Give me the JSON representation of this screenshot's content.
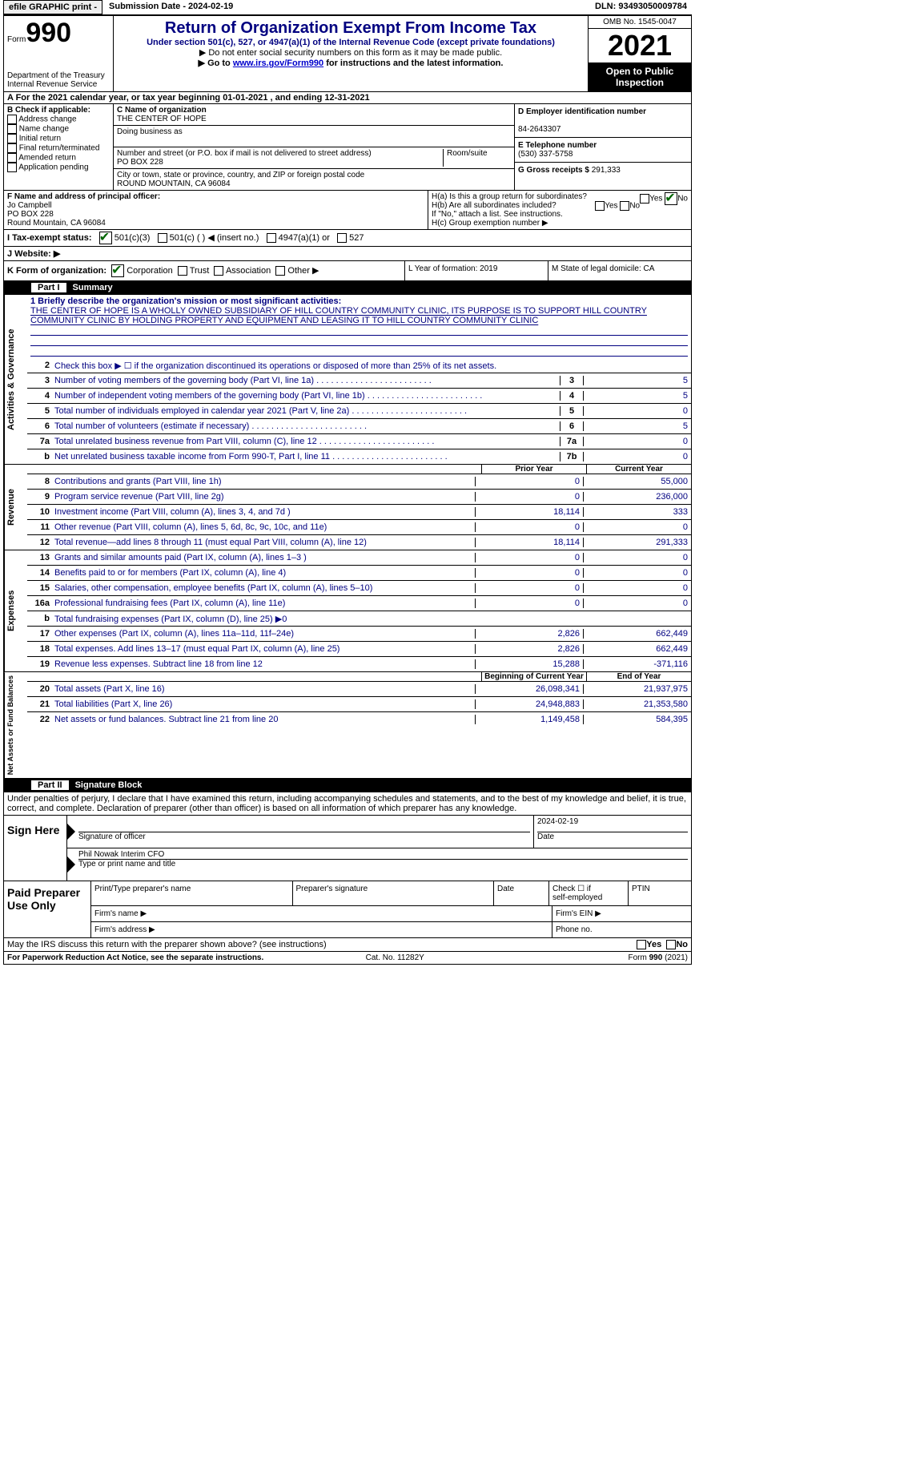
{
  "topbar": {
    "efile": "efile GRAPHIC print -",
    "submission": "Submission Date - 2024-02-19",
    "dln": "DLN: 93493050009784"
  },
  "header": {
    "form": "Form",
    "formno": "990",
    "dept": "Department of the Treasury\nInternal Revenue Service",
    "title": "Return of Organization Exempt From Income Tax",
    "sub1": "Under section 501(c), 527, or 4947(a)(1) of the Internal Revenue Code (except private foundations)",
    "sub2": "▶ Do not enter social security numbers on this form as it may be made public.",
    "sub3a": "▶ Go to ",
    "link": "www.irs.gov/Form990",
    "sub3b": " for instructions and the latest information.",
    "omb": "OMB No. 1545-0047",
    "year": "2021",
    "open": "Open to Public Inspection"
  },
  "rowA": "A For the 2021 calendar year, or tax year beginning 01-01-2021    , and ending 12-31-2021",
  "B": {
    "label": "B Check if applicable:",
    "opts": [
      "Address change",
      "Name change",
      "Initial return",
      "Final return/terminated",
      "Amended return",
      "Application pending"
    ]
  },
  "C": {
    "name_lbl": "C Name of organization",
    "name": "THE CENTER OF HOPE",
    "dba_lbl": "Doing business as",
    "dba": "",
    "addr_lbl": "Number and street (or P.O. box if mail is not delivered to street address)",
    "room_lbl": "Room/suite",
    "addr": "PO BOX 228",
    "city_lbl": "City or town, state or province, country, and ZIP or foreign postal code",
    "city": "ROUND MOUNTAIN, CA  96084"
  },
  "D": {
    "ein_lbl": "D Employer identification number",
    "ein": "84-2643307",
    "tel_lbl": "E Telephone number",
    "tel": "(530) 337-5758",
    "gross_lbl": "G Gross receipts $",
    "gross": "291,333"
  },
  "F": {
    "lbl": "F Name and address of principal officer:",
    "name": "Jo Campbell",
    "addr1": "PO BOX 228",
    "addr2": "Round Mountain, CA  96084"
  },
  "H": {
    "a": "H(a)  Is this a group return for subordinates?",
    "b": "H(b)  Are all subordinates included?",
    "note": "If \"No,\" attach a list. See instructions.",
    "c": "H(c)  Group exemption number ▶"
  },
  "I": {
    "lbl": "I  Tax-exempt status:",
    "o1": "501(c)(3)",
    "o2": "501(c) (  ) ◀ (insert no.)",
    "o3": "4947(a)(1) or",
    "o4": "527"
  },
  "J": "J  Website: ▶",
  "K": "K Form of organization:",
  "Kopts": [
    "Corporation",
    "Trust",
    "Association",
    "Other ▶"
  ],
  "L": "L Year of formation: 2019",
  "M": "M State of legal domicile: CA",
  "part1": {
    "num": "Part I",
    "title": "Summary"
  },
  "mission": {
    "lbl": "1  Briefly describe the organization's mission or most significant activities:",
    "text": "THE CENTER OF HOPE IS A WHOLLY OWNED SUBSIDIARY OF HILL COUNTRY COMMUNITY CLINIC, ITS PURPOSE IS TO SUPPORT HILL COUNTRY COMMUNITY CLINIC BY HOLDING PROPERTY AND EQUIPMENT AND LEASING IT TO HILL COUNTRY COMMUNITY CLINIC"
  },
  "line2": "Check this box ▶ ☐ if the organization discontinued its operations or disposed of more than 25% of its net assets.",
  "gov": [
    {
      "n": "3",
      "t": "Number of voting members of the governing body (Part VI, line 1a)",
      "b": "3",
      "v": "5"
    },
    {
      "n": "4",
      "t": "Number of independent voting members of the governing body (Part VI, line 1b)",
      "b": "4",
      "v": "5"
    },
    {
      "n": "5",
      "t": "Total number of individuals employed in calendar year 2021 (Part V, line 2a)",
      "b": "5",
      "v": "0"
    },
    {
      "n": "6",
      "t": "Total number of volunteers (estimate if necessary)",
      "b": "6",
      "v": "5"
    },
    {
      "n": "7a",
      "t": "Total unrelated business revenue from Part VIII, column (C), line 12",
      "b": "7a",
      "v": "0"
    },
    {
      "n": "b",
      "t": "Net unrelated business taxable income from Form 990-T, Part I, line 11",
      "b": "7b",
      "v": "0"
    }
  ],
  "hdr_prior": "Prior Year",
  "hdr_curr": "Current Year",
  "rev": [
    {
      "n": "8",
      "t": "Contributions and grants (Part VIII, line 1h)",
      "p": "0",
      "c": "55,000"
    },
    {
      "n": "9",
      "t": "Program service revenue (Part VIII, line 2g)",
      "p": "0",
      "c": "236,000"
    },
    {
      "n": "10",
      "t": "Investment income (Part VIII, column (A), lines 3, 4, and 7d )",
      "p": "18,114",
      "c": "333"
    },
    {
      "n": "11",
      "t": "Other revenue (Part VIII, column (A), lines 5, 6d, 8c, 9c, 10c, and 11e)",
      "p": "0",
      "c": "0"
    },
    {
      "n": "12",
      "t": "Total revenue—add lines 8 through 11 (must equal Part VIII, column (A), line 12)",
      "p": "18,114",
      "c": "291,333"
    }
  ],
  "exp": [
    {
      "n": "13",
      "t": "Grants and similar amounts paid (Part IX, column (A), lines 1–3 )",
      "p": "0",
      "c": "0"
    },
    {
      "n": "14",
      "t": "Benefits paid to or for members (Part IX, column (A), line 4)",
      "p": "0",
      "c": "0"
    },
    {
      "n": "15",
      "t": "Salaries, other compensation, employee benefits (Part IX, column (A), lines 5–10)",
      "p": "0",
      "c": "0"
    },
    {
      "n": "16a",
      "t": "Professional fundraising fees (Part IX, column (A), line 11e)",
      "p": "0",
      "c": "0"
    },
    {
      "n": "b",
      "t": "Total fundraising expenses (Part IX, column (D), line 25) ▶0",
      "p": "",
      "c": "",
      "shade": true
    },
    {
      "n": "17",
      "t": "Other expenses (Part IX, column (A), lines 11a–11d, 11f–24e)",
      "p": "2,826",
      "c": "662,449"
    },
    {
      "n": "18",
      "t": "Total expenses. Add lines 13–17 (must equal Part IX, column (A), line 25)",
      "p": "2,826",
      "c": "662,449"
    },
    {
      "n": "19",
      "t": "Revenue less expenses. Subtract line 18 from line 12",
      "p": "15,288",
      "c": "-371,116"
    }
  ],
  "hdr_beg": "Beginning of Current Year",
  "hdr_end": "End of Year",
  "net": [
    {
      "n": "20",
      "t": "Total assets (Part X, line 16)",
      "p": "26,098,341",
      "c": "21,937,975"
    },
    {
      "n": "21",
      "t": "Total liabilities (Part X, line 26)",
      "p": "24,948,883",
      "c": "21,353,580"
    },
    {
      "n": "22",
      "t": "Net assets or fund balances. Subtract line 21 from line 20",
      "p": "1,149,458",
      "c": "584,395"
    }
  ],
  "part2": {
    "num": "Part II",
    "title": "Signature Block"
  },
  "sigintro": "Under penalties of perjury, I declare that I have examined this return, including accompanying schedules and statements, and to the best of my knowledge and belief, it is true, correct, and complete. Declaration of preparer (other than officer) is based on all information of which preparer has any knowledge.",
  "sign": {
    "l": "Sign Here",
    "sig_lbl": "Signature of officer",
    "date": "2024-02-19",
    "date_lbl": "Date",
    "name": "Phil Nowak  Interim CFO",
    "name_lbl": "Type or print name and title"
  },
  "paid": {
    "l": "Paid Preparer Use Only",
    "h1": "Print/Type preparer's name",
    "h2": "Preparer's signature",
    "h3": "Date",
    "h4a": "Check ☐ if",
    "h4b": "self-employed",
    "h5": "PTIN",
    "f1": "Firm's name  ▶",
    "f2": "Firm's EIN ▶",
    "f3": "Firm's address ▶",
    "f4": "Phone no."
  },
  "discuss": "May the IRS discuss this return with the preparer shown above? (see instructions)",
  "footer": {
    "l": "For Paperwork Reduction Act Notice, see the separate instructions.",
    "c": "Cat. No. 11282Y",
    "r": "Form 990 (2021)"
  },
  "vtabs": {
    "gov": "Activities & Governance",
    "rev": "Revenue",
    "exp": "Expenses",
    "net": "Net Assets or Fund Balances"
  }
}
